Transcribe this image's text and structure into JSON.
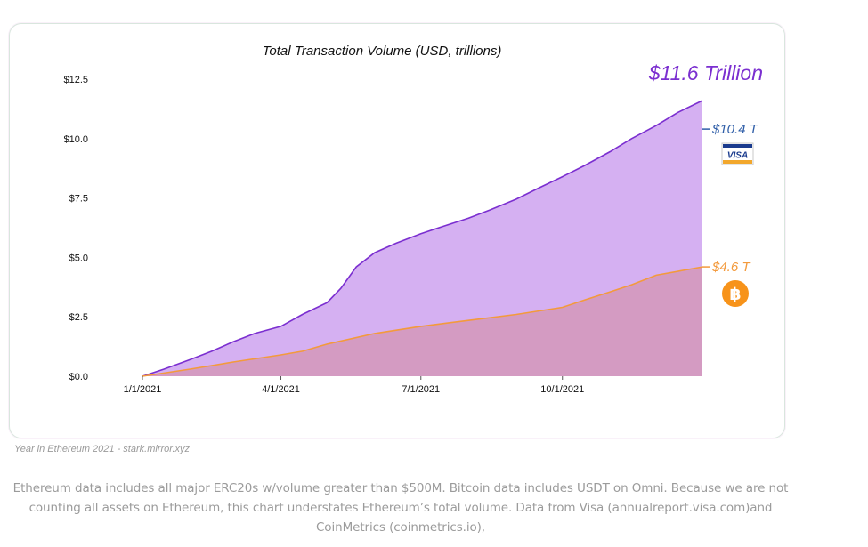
{
  "chart_data": {
    "type": "area",
    "title": "Total Transaction Volume (USD, trillions)",
    "x_tick_labels": [
      "1/1/2021",
      "4/1/2021",
      "7/1/2021",
      "10/1/2021"
    ],
    "y_tick_labels": [
      "$0.0",
      "$2.5",
      "$5.0",
      "$7.5",
      "$10.0",
      "$12.5"
    ],
    "ylim": [
      0,
      12.5
    ],
    "xlim": [
      "2021-01-01",
      "2021-12-31"
    ],
    "grid": false,
    "series": [
      {
        "color": "#7b2fd0",
        "fill": "#d5b0f2",
        "points": [
          [
            "2021-01-01",
            0.0
          ],
          [
            "2021-01-15",
            0.3
          ],
          [
            "2021-02-01",
            0.7
          ],
          [
            "2021-02-15",
            1.05
          ],
          [
            "2021-03-01",
            1.45
          ],
          [
            "2021-03-15",
            1.8
          ],
          [
            "2021-04-01",
            2.1
          ],
          [
            "2021-04-15",
            2.6
          ],
          [
            "2021-05-01",
            3.1
          ],
          [
            "2021-05-10",
            3.7
          ],
          [
            "2021-05-20",
            4.6
          ],
          [
            "2021-06-01",
            5.2
          ],
          [
            "2021-06-15",
            5.6
          ],
          [
            "2021-07-01",
            6.0
          ],
          [
            "2021-07-15",
            6.3
          ],
          [
            "2021-08-01",
            6.65
          ],
          [
            "2021-08-15",
            7.0
          ],
          [
            "2021-09-01",
            7.45
          ],
          [
            "2021-09-15",
            7.9
          ],
          [
            "2021-10-01",
            8.4
          ],
          [
            "2021-10-15",
            8.85
          ],
          [
            "2021-11-01",
            9.45
          ],
          [
            "2021-11-15",
            10.0
          ],
          [
            "2021-12-01",
            10.55
          ],
          [
            "2021-12-15",
            11.1
          ],
          [
            "2021-12-31",
            11.6
          ]
        ]
      },
      {
        "color": "#f39a3c",
        "fill": "#d499bc",
        "points": [
          [
            "2021-01-01",
            0.0
          ],
          [
            "2021-02-01",
            0.3
          ],
          [
            "2021-03-01",
            0.6
          ],
          [
            "2021-04-01",
            0.9
          ],
          [
            "2021-04-15",
            1.05
          ],
          [
            "2021-05-01",
            1.35
          ],
          [
            "2021-06-01",
            1.8
          ],
          [
            "2021-07-01",
            2.1
          ],
          [
            "2021-08-01",
            2.35
          ],
          [
            "2021-09-01",
            2.6
          ],
          [
            "2021-10-01",
            2.9
          ],
          [
            "2021-10-15",
            3.2
          ],
          [
            "2021-11-01",
            3.55
          ],
          [
            "2021-11-15",
            3.85
          ],
          [
            "2021-12-01",
            4.25
          ],
          [
            "2021-12-31",
            4.6
          ]
        ]
      }
    ],
    "annotations": {
      "total_label": "$11.6 Trillion",
      "total_color": "#7b2fd0",
      "visa_label": "$10.4 T",
      "visa_value": 10.4,
      "visa_color": "#2f5ea8",
      "visa_logo_text": "VISA",
      "btc_label": "$4.6 T",
      "btc_value": 4.6,
      "btc_color": "#f39a3c",
      "btc_icon": "bitcoin-icon"
    }
  },
  "caption": "Year in Ethereum 2021 - stark.mirror.xyz",
  "footnote": "Ethereum data includes all major ERC20s w/volume greater than $500M. Bitcoin data includes USDT on Omni. Because we are not counting all assets on Ethereum, this chart understates Ethereum’s total volume. Data from Visa (annualreport.visa.com)and CoinMetrics (coinmetrics.io),"
}
